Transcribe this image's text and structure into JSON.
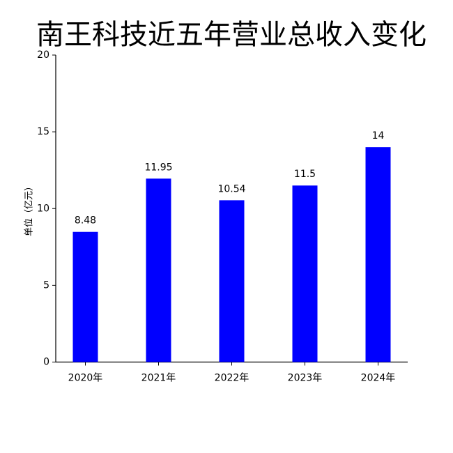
{
  "chart_data": {
    "type": "bar",
    "title": "南王科技近五年营业总收入变化",
    "y_label": "单位（亿元）",
    "categories": [
      "2020年",
      "2021年",
      "2022年",
      "2023年",
      "2024年"
    ],
    "values": [
      8.48,
      11.95,
      10.54,
      11.5,
      14
    ],
    "color": "#0000ff",
    "ylim": [
      0,
      20
    ],
    "yticks": [
      0,
      5,
      10,
      15,
      20
    ],
    "grid": false
  }
}
